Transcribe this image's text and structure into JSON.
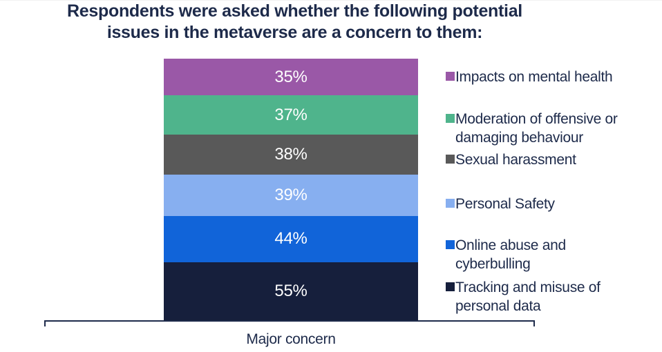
{
  "page": {
    "background": "#ffffff"
  },
  "chart_data": {
    "type": "bar",
    "variant": "stacked-column",
    "title": "Respondents were asked whether the following potential issues in the metaverse are a concern to them:",
    "xlabel": "Major concern",
    "categories": [
      "Major concern"
    ],
    "legend_position": "right",
    "value_label_style": "white, centered inside each segment",
    "grid": false,
    "series": [
      {
        "name": "Impacts on mental health",
        "value": 35,
        "label": "35%",
        "color": "#9a58a7"
      },
      {
        "name": "Moderation of offensive or damaging behaviour",
        "value": 37,
        "label": "37%",
        "color": "#4fb48c"
      },
      {
        "name": "Sexual harassment",
        "value": 38,
        "label": "38%",
        "color": "#595959"
      },
      {
        "name": "Personal Safety",
        "value": 39,
        "label": "39%",
        "color": "#87aff0"
      },
      {
        "name": "Online abuse and cyberbulling",
        "value": 44,
        "label": "44%",
        "color": "#1164d9"
      },
      {
        "name": "Tracking and misuse of personal data",
        "value": 55,
        "label": "55%",
        "color": "#161f3c"
      }
    ]
  },
  "colors": {
    "text": "#1d2a4a",
    "axis": "#1d2a4a",
    "value_label": "#ffffff",
    "background": "#ffffff"
  }
}
